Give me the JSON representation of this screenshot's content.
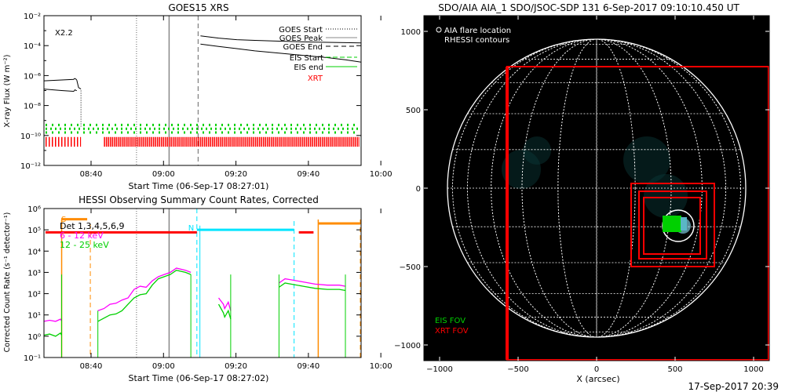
{
  "colors": {
    "goes_curve": "#000000",
    "eis": "#00d000",
    "xrt": "#ff0000",
    "hessi_6_12": "#ff00ff",
    "hessi_12_25": "#00d000",
    "hessi_S": "#ff8c00",
    "hessi_N": "#00e5ff",
    "hessi_day": "#ff0000",
    "aia_bg": "#000000",
    "aia_grid": "#ffffff"
  },
  "chart_data": [
    {
      "type": "line",
      "title": "GOES15 XRS",
      "xlabel": "Start Time (06-Sep-17 08:27:01)",
      "ylabel": "X-ray Flux (W m⁻²)",
      "x_ticks": [
        "08:40",
        "09:00",
        "09:20",
        "09:40",
        "10:00"
      ],
      "x_tick_min": [
        520,
        1240,
        1960,
        2760,
        3280,
        4000,
        4840
      ],
      "y_ticks": [
        "10⁻²",
        "10⁻⁴",
        "10⁻⁶",
        "10⁻⁸",
        "10⁻¹⁰",
        "10⁻¹²"
      ],
      "y_exp": [
        -2,
        -4,
        -6,
        -8,
        -10,
        -12
      ],
      "ylim": [
        -12,
        -2
      ],
      "xlim_min": [
        507,
        5760
      ],
      "annotation": "X2.2",
      "legend": [
        {
          "label": "GOES Start",
          "style": "dotted"
        },
        {
          "label": "GOES Peak",
          "style": "solid"
        },
        {
          "label": "GOES End",
          "style": "dashed"
        },
        {
          "label": "EIS Start",
          "style": "green-dashed"
        },
        {
          "label": "EIS end",
          "style": "green-solid"
        },
        {
          "label": "XRT",
          "style": "red-text"
        }
      ],
      "series": [
        {
          "segments": [
            {
              "min": [
                507,
                1000,
                1010,
                1015,
                1020,
                1030,
                1040,
                1050
              ],
              "log": [
                -6.35,
                -6.25,
                -6.2,
                -6.2,
                -6.2,
                -6.22,
                -6.25,
                -6.3
              ]
            },
            {
              "min": [
                1050,
                1080,
                1120
              ],
              "log": [
                -6.3,
                -6.8,
                -6.9
              ]
            },
            {
              "min": [
                507,
                800,
                1000,
                1010,
                1020,
                1040,
                1050
              ],
              "log": [
                -6.9,
                -7.0,
                -7.05,
                -7.0,
                -6.95,
                -7.0,
                -7.0
              ]
            },
            {
              "min": [
                3100,
                3400,
                3700,
                4000,
                4400,
                4800,
                5200,
                5500,
                5760
              ],
              "log": [
                -3.35,
                -3.5,
                -3.6,
                -3.65,
                -3.7,
                -3.75,
                -3.78,
                -3.8,
                -3.82
              ]
            },
            {
              "min": [
                3100,
                3400,
                3700,
                4000,
                4400,
                4800,
                5200,
                5500,
                5760
              ],
              "log": [
                -3.9,
                -4.05,
                -4.2,
                -4.35,
                -4.5,
                -4.65,
                -4.8,
                -4.95,
                -5.1
              ]
            }
          ]
        }
      ],
      "goes_start_min": 2040,
      "goes_peak_min": 2580,
      "goes_end_min": 3060,
      "eis_min": [
        507,
        5760
      ],
      "xrt_gap_min": [
        1120,
        1500
      ]
    },
    {
      "type": "line",
      "title": "HESSI Observing Summary Count Rates, Corrected",
      "xlabel": "Start Time (06-Sep-17 08:27:02)",
      "ylabel": "Corrected Count Rate (s⁻¹ detector⁻¹)",
      "x_ticks": [
        "08:40",
        "09:00",
        "09:20",
        "09:40",
        "10:00"
      ],
      "y_ticks": [
        "10⁶",
        "10⁵",
        "10⁴",
        "10³",
        "10²",
        "10¹",
        "10⁰",
        "10⁻¹"
      ],
      "y_exp": [
        6,
        5,
        4,
        3,
        2,
        1,
        0,
        -1
      ],
      "ylim": [
        -1,
        6
      ],
      "legend": [
        {
          "label": "Det 1,3,4,5,6,9",
          "color": "#000000"
        },
        {
          "label": "6 - 12 keV",
          "color": "#ff00ff"
        },
        {
          "label": "12 - 25 keV",
          "color": "#00d000"
        }
      ],
      "segment_labels": [
        "S",
        "N"
      ],
      "series": [
        {
          "name": "6 - 12 keV",
          "segments": [
            {
              "min": [
                507,
                600,
                700,
                780,
                800
              ],
              "log": [
                0.7,
                0.75,
                0.7,
                0.8,
                0.72
              ]
            },
            {
              "min": [
                1400,
                1500,
                1600,
                1700,
                1800,
                1900,
                2000,
                2100,
                2200,
                2300,
                2400,
                2500,
                2600,
                2700,
                2850,
                2940
              ],
              "log": [
                1.2,
                1.3,
                1.5,
                1.55,
                1.7,
                1.8,
                2.2,
                2.35,
                2.3,
                2.6,
                2.8,
                2.9,
                3.0,
                3.2,
                3.1,
                3.0
              ]
            },
            {
              "min": [
                3400,
                3480,
                3500,
                3560,
                3600
              ],
              "log": [
                1.8,
                1.5,
                1.3,
                1.6,
                1.2
              ]
            },
            {
              "min": [
                4400,
                4500,
                4600,
                4800,
                5000,
                5200,
                5400,
                5500
              ],
              "log": [
                2.5,
                2.7,
                2.65,
                2.55,
                2.45,
                2.4,
                2.4,
                2.35
              ]
            }
          ]
        },
        {
          "name": "12 - 25 keV",
          "segments": [
            {
              "min": [
                507,
                600,
                700,
                780,
                800
              ],
              "log": [
                0.05,
                0.1,
                0.0,
                0.15,
                0.05
              ]
            },
            {
              "min": [
                1400,
                1500,
                1600,
                1700,
                1800,
                1900,
                2000,
                2100,
                2200,
                2300,
                2400,
                2500,
                2600,
                2700,
                2850,
                2940
              ],
              "log": [
                0.7,
                0.85,
                1.0,
                1.05,
                1.2,
                1.5,
                1.8,
                1.95,
                2.0,
                2.4,
                2.7,
                2.8,
                2.9,
                3.1,
                3.0,
                2.9
              ]
            },
            {
              "min": [
                3400,
                3480,
                3500,
                3560,
                3600
              ],
              "log": [
                1.5,
                1.1,
                0.9,
                1.2,
                0.8
              ]
            },
            {
              "min": [
                4400,
                4500,
                4600,
                4800,
                5000,
                5200,
                5400,
                5500
              ],
              "log": [
                2.3,
                2.5,
                2.45,
                2.35,
                2.25,
                2.2,
                2.2,
                2.15
              ]
            }
          ]
        }
      ],
      "goes_start_min": 2040,
      "goes_peak_min": 2580,
      "s_markers_min": [
        800,
        1275
      ],
      "n_markers_min": [
        3040,
        4650
      ],
      "day_markers_min": [
        5050,
        5760
      ]
    },
    {
      "type": "scatter",
      "title": "SDO/AIA AIA_1 SDO/JSOC-SDP 131   6-Sep-2017 09:10:10.450 UT",
      "xlabel": "X (arcsec)",
      "ylabel": "",
      "x_ticks": [
        "−1000",
        "−500",
        "0",
        "500",
        "1000"
      ],
      "x_vals": [
        -1000,
        -500,
        0,
        500,
        1000
      ],
      "y_ticks": [
        "1000",
        "500",
        "0",
        "−500",
        "−1000"
      ],
      "y_vals": [
        1000,
        500,
        0,
        -500,
        -1000
      ],
      "xlim": [
        -1100,
        1100
      ],
      "ylim": [
        -1100,
        1100
      ],
      "legend_top": [
        "AIA flare location",
        "RHESSI contours"
      ],
      "legend_bottom": [
        "EIS FOV",
        "XRT FOV"
      ],
      "solar_radius_arcsec": 950,
      "timestamp": "17-Sep-2017 20:39",
      "xrt_fov_boxes": [
        {
          "x": [
            -570,
            1110
          ],
          "y": [
            -1120,
            775
          ]
        },
        {
          "x": [
            220,
            750
          ],
          "y": [
            -500,
            30
          ]
        },
        {
          "x": [
            270,
            700
          ],
          "y": [
            -450,
            -20
          ]
        },
        {
          "x": [
            300,
            660
          ],
          "y": [
            -420,
            -60
          ]
        }
      ],
      "eis_fov_box": {
        "x": [
          420,
          540
        ],
        "y": [
          -280,
          -175
        ]
      },
      "flare_xy": [
        520,
        -230
      ]
    }
  ]
}
